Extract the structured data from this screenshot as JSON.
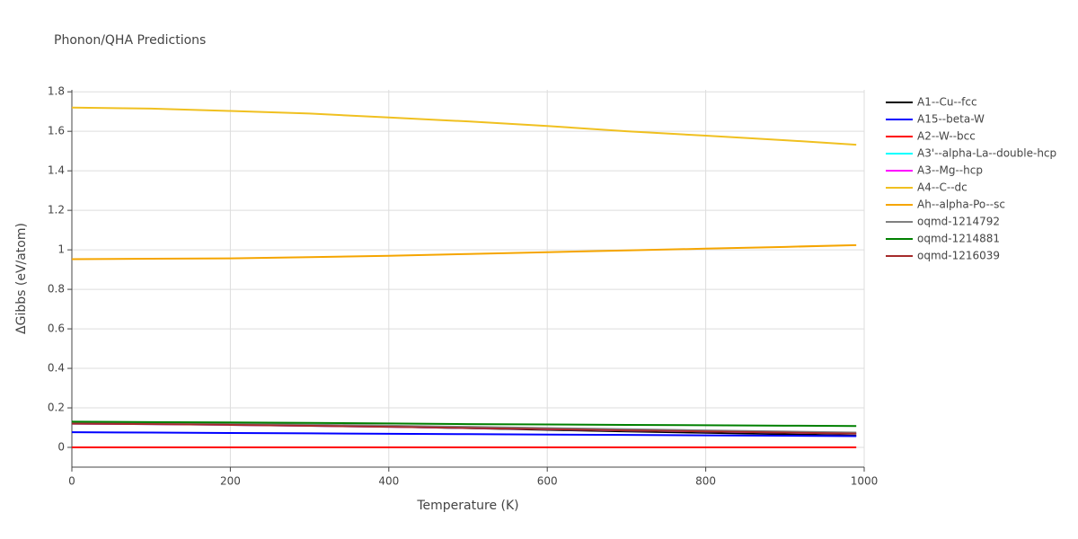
{
  "chart_data": {
    "type": "line",
    "title": "Phonon/QHA Predictions",
    "xlabel": "Temperature (K)",
    "ylabel": "ΔGibbs (eV/atom)",
    "x": [
      0,
      100,
      200,
      300,
      400,
      500,
      600,
      700,
      800,
      900,
      990
    ],
    "xlim": [
      0,
      1000
    ],
    "xticks": [
      0,
      200,
      400,
      600,
      800,
      1000
    ],
    "ylim": [
      -0.1,
      1.81
    ],
    "yticks": [
      0,
      0.2,
      0.4,
      0.6,
      0.8,
      1,
      1.2,
      1.4,
      1.6,
      1.8
    ],
    "grid": true,
    "legend": "right",
    "series": [
      {
        "name": "A1--Cu--fcc",
        "color": "#000000",
        "values": [
          0.125,
          0.122,
          0.118,
          0.112,
          0.105,
          0.097,
          0.089,
          0.081,
          0.074,
          0.067,
          0.06
        ]
      },
      {
        "name": "A15--beta-W",
        "color": "#0000ff",
        "values": [
          0.077,
          0.075,
          0.073,
          0.071,
          0.069,
          0.067,
          0.065,
          0.063,
          0.061,
          0.059,
          0.057
        ]
      },
      {
        "name": "A2--W--bcc",
        "color": "#ff0000",
        "values": [
          0,
          0,
          0,
          0,
          0,
          0,
          0,
          0,
          0,
          0,
          0
        ]
      },
      {
        "name": "A3'--alpha-La--double-hcp",
        "color": "#00ffff",
        "values": [
          0.12,
          0.118,
          0.114,
          0.109,
          0.104,
          0.098,
          0.092,
          0.086,
          0.081,
          0.075,
          0.07
        ]
      },
      {
        "name": "A3--Mg--hcp",
        "color": "#ff00ff",
        "values": [
          0.12,
          0.118,
          0.114,
          0.109,
          0.104,
          0.098,
          0.092,
          0.086,
          0.081,
          0.075,
          0.07
        ]
      },
      {
        "name": "A4--C--dc",
        "color": "#f0c020",
        "values": [
          1.72,
          1.715,
          1.703,
          1.69,
          1.67,
          1.65,
          1.627,
          1.6,
          1.578,
          1.555,
          1.532
        ]
      },
      {
        "name": "Ah--alpha-Po--sc",
        "color": "#f5a500",
        "values": [
          0.953,
          0.955,
          0.957,
          0.963,
          0.97,
          0.979,
          0.988,
          0.997,
          1.006,
          1.015,
          1.024
        ]
      },
      {
        "name": "oqmd-1214792",
        "color": "#808080",
        "values": [
          0.125,
          0.122,
          0.119,
          0.115,
          0.11,
          0.104,
          0.098,
          0.092,
          0.086,
          0.08,
          0.075
        ]
      },
      {
        "name": "oqmd-1214881",
        "color": "#008000",
        "values": [
          0.13,
          0.128,
          0.126,
          0.124,
          0.121,
          0.118,
          0.116,
          0.114,
          0.112,
          0.11,
          0.108
        ]
      },
      {
        "name": "oqmd-1216039",
        "color": "#a52a2a",
        "values": [
          0.12,
          0.118,
          0.114,
          0.109,
          0.104,
          0.098,
          0.092,
          0.086,
          0.081,
          0.075,
          0.07
        ]
      }
    ]
  }
}
